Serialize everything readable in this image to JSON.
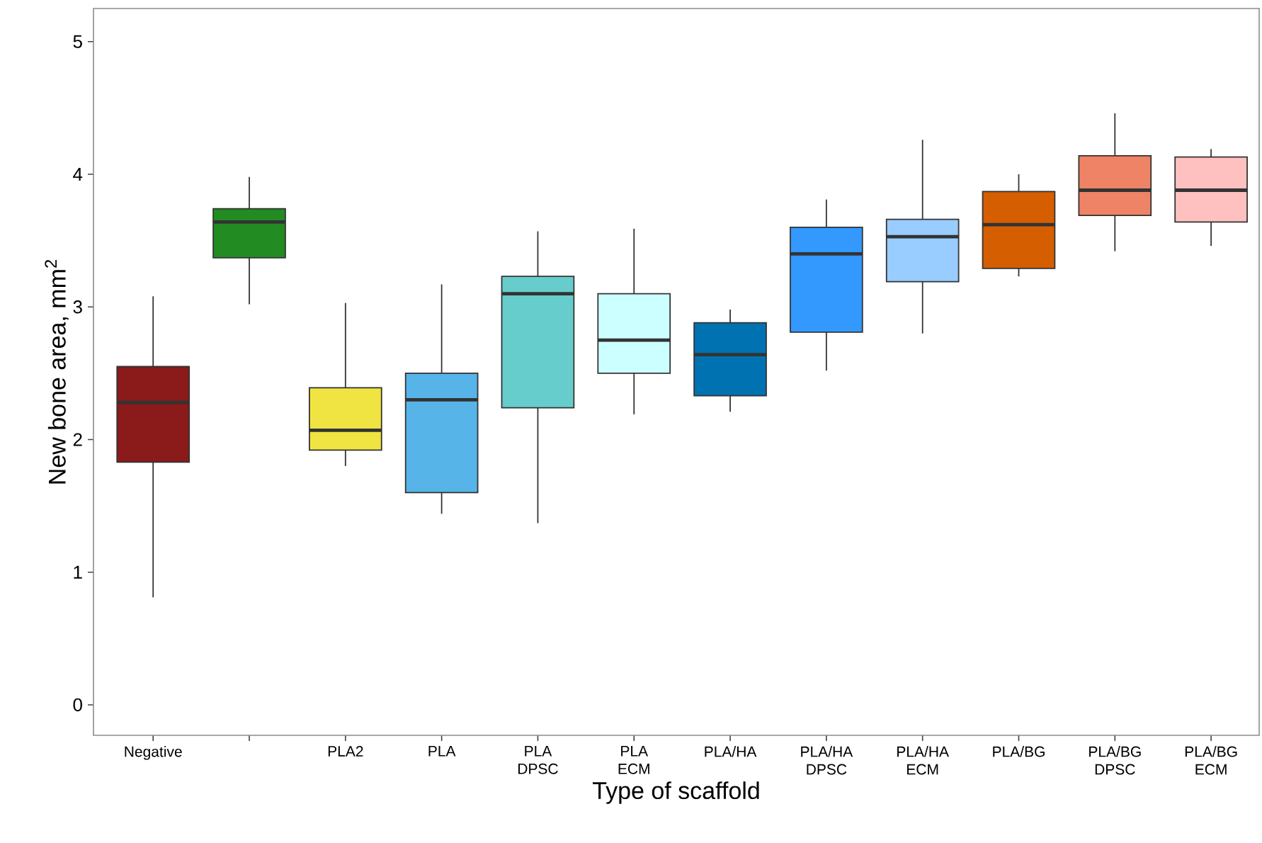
{
  "chart_data": {
    "type": "box",
    "xlabel": "Type of scaffold",
    "ylabel": "New bone area, mm$^{2}$",
    "categories": [
      "Negative",
      null,
      "PLA2",
      "PLA",
      "PLA DPSC",
      "PLA ECM",
      "PLA/HA",
      "PLA/HA DPSC",
      "PLA/HA ECM",
      "PLA/BG",
      "PLA/BG DPSC",
      "PLA/BG ECM"
    ],
    "colors": [
      "#8b1a1a",
      "#228b22",
      "#f0e442",
      "#56b4e9",
      "#66cdcc",
      "#ccffff",
      "#0072b2",
      "#3399ff",
      "#99ccff",
      "#d55e00",
      "#ef8366",
      "#ffc0c0"
    ],
    "boxes": [
      {
        "low": 0.81,
        "q1": 1.83,
        "median": 2.28,
        "q3": 2.55,
        "high": 3.08
      },
      {
        "low": 3.02,
        "q1": 3.37,
        "median": 3.64,
        "q3": 3.74,
        "high": 3.98
      },
      {
        "low": 1.8,
        "q1": 1.92,
        "median": 2.07,
        "q3": 2.39,
        "high": 3.03
      },
      {
        "low": 1.44,
        "q1": 1.6,
        "median": 2.3,
        "q3": 2.5,
        "high": 3.17
      },
      {
        "low": 1.37,
        "q1": 2.24,
        "median": 3.1,
        "q3": 3.23,
        "high": 3.57
      },
      {
        "low": 2.19,
        "q1": 2.5,
        "median": 2.75,
        "q3": 3.1,
        "high": 3.59
      },
      {
        "low": 2.21,
        "q1": 2.33,
        "median": 2.64,
        "q3": 2.88,
        "high": 2.98
      },
      {
        "low": 2.52,
        "q1": 2.81,
        "median": 3.4,
        "q3": 3.6,
        "high": 3.81
      },
      {
        "low": 2.8,
        "q1": 3.19,
        "median": 3.53,
        "q3": 3.66,
        "high": 4.26
      },
      {
        "low": 3.23,
        "q1": 3.29,
        "median": 3.62,
        "q3": 3.87,
        "high": 4.0
      },
      {
        "low": 3.42,
        "q1": 3.69,
        "median": 3.88,
        "q3": 4.14,
        "high": 4.46
      },
      {
        "low": 3.46,
        "q1": 3.64,
        "median": 3.88,
        "q3": 4.13,
        "high": 4.19
      }
    ],
    "ylim": [
      -0.23,
      5.25
    ],
    "yticks": [
      0,
      1,
      2,
      3,
      4,
      5
    ]
  }
}
